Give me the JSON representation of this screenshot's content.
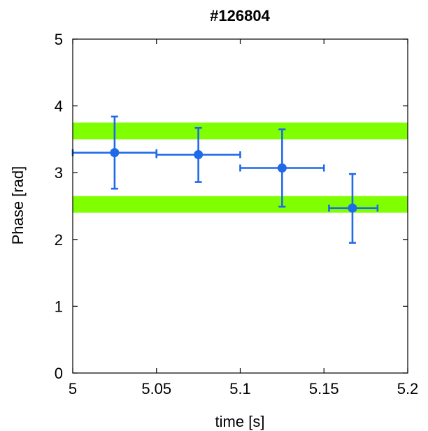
{
  "chart_data": {
    "type": "scatter",
    "title": "#126804",
    "xlabel": "time [s]",
    "ylabel": "Phase [rad]",
    "xlim": [
      5,
      5.2
    ],
    "ylim": [
      0,
      5
    ],
    "x_ticks": [
      "5",
      "5.05",
      "5.1",
      "5.15",
      "5.2"
    ],
    "y_ticks": [
      "0",
      "1",
      "2",
      "3",
      "4",
      "5"
    ],
    "grid": false,
    "bands": [
      {
        "y0": 3.5,
        "y1": 3.75,
        "color": "#7fff00"
      },
      {
        "y0": 2.4,
        "y1": 2.65,
        "color": "#7fff00"
      }
    ],
    "series": [
      {
        "color": "#1f6ae8",
        "points": [
          {
            "x": 5.025,
            "y": 3.3,
            "xerr": [
              5.0,
              5.05
            ],
            "yerr": [
              2.76,
              3.84
            ]
          },
          {
            "x": 5.075,
            "y": 3.27,
            "xerr": [
              5.05,
              5.1
            ],
            "yerr": [
              2.86,
              3.67
            ]
          },
          {
            "x": 5.125,
            "y": 3.07,
            "xerr": [
              5.1,
              5.15
            ],
            "yerr": [
              2.49,
              3.65
            ]
          },
          {
            "x": 5.167,
            "y": 2.47,
            "xerr": [
              5.153,
              5.182
            ],
            "yerr": [
              1.95,
              2.98
            ]
          }
        ]
      }
    ]
  }
}
